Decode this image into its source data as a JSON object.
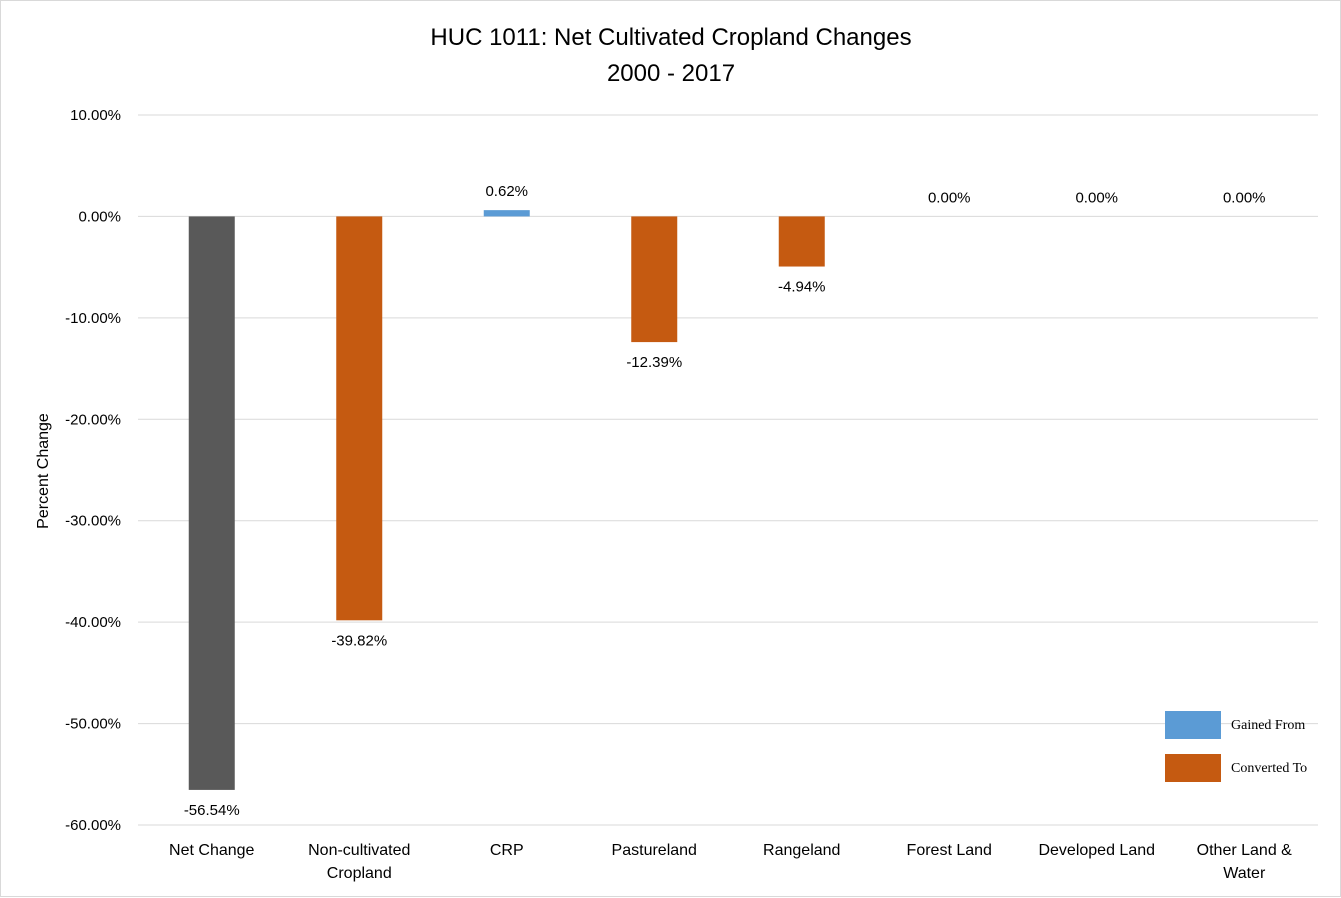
{
  "chart_data": {
    "type": "bar",
    "title": "HUC 1011: Net Cultivated Cropland Changes",
    "subtitle": "2000 - 2017",
    "xlabel": "",
    "ylabel": "Percent Change",
    "ylim": [
      -60,
      10
    ],
    "yticks": [
      10,
      0,
      -10,
      -20,
      -30,
      -40,
      -50,
      -60
    ],
    "ytick_labels": [
      "10.00%",
      "0.00%",
      "-10.00%",
      "-20.00%",
      "-30.00%",
      "-40.00%",
      "-50.00%",
      "-60.00%"
    ],
    "grid": true,
    "legend_position": "bottom-right",
    "categories": [
      [
        "Net Change"
      ],
      [
        "Non-cultivated",
        "Cropland"
      ],
      [
        "CRP"
      ],
      [
        "Pastureland"
      ],
      [
        "Rangeland"
      ],
      [
        "Forest Land"
      ],
      [
        "Developed Land"
      ],
      [
        "Other Land &",
        "Water"
      ]
    ],
    "values": [
      -56.54,
      -39.82,
      0.62,
      -12.39,
      -4.94,
      0.0,
      0.0,
      0.0
    ],
    "data_labels": [
      "-56.54%",
      "-39.82%",
      "0.62%",
      "-12.39%",
      "-4.94%",
      "0.00%",
      "0.00%",
      "0.00%"
    ],
    "bar_kinds": [
      "net",
      "converted",
      "gained",
      "converted",
      "converted",
      "none",
      "none",
      "none"
    ],
    "colors": {
      "net": "#595959",
      "gained": "#5b9bd5",
      "converted": "#c55a11",
      "gridline": "#d9d9d9"
    },
    "legend": [
      {
        "label": "Gained From",
        "kind": "gained"
      },
      {
        "label": "Converted To",
        "kind": "converted"
      }
    ]
  }
}
